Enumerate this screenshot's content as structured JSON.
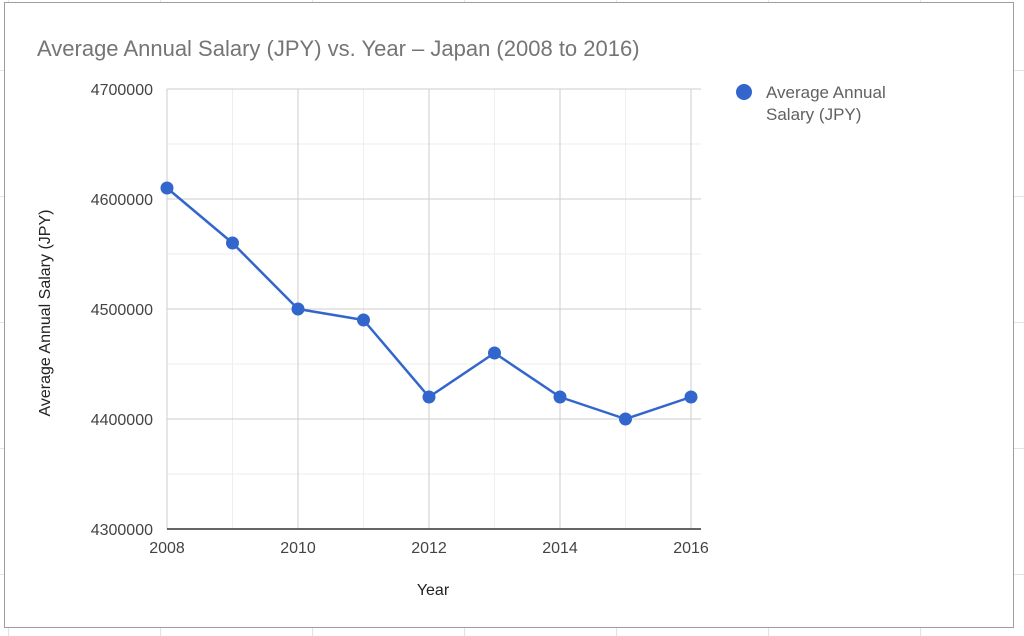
{
  "chart_data": {
    "type": "line",
    "title": "Average Annual Salary (JPY) vs. Year – Japan (2008 to 2016)",
    "xlabel": "Year",
    "ylabel": "Average Annual Salary (JPY)",
    "xlim": [
      2008,
      2016
    ],
    "ylim": [
      4300000,
      4700000
    ],
    "x_ticks": [
      "2008",
      "2010",
      "2012",
      "2014",
      "2016"
    ],
    "y_ticks": [
      "4300000",
      "4400000",
      "4500000",
      "4600000",
      "4700000"
    ],
    "grid": true,
    "legend_position": "right",
    "series": [
      {
        "name": "Average Annual Salary (JPY)",
        "color": "#3366cc",
        "x": [
          2008,
          2009,
          2010,
          2011,
          2012,
          2013,
          2014,
          2015,
          2016
        ],
        "values": [
          4610000,
          4560000,
          4500000,
          4490000,
          4420000,
          4460000,
          4420000,
          4400000,
          4420000
        ]
      }
    ]
  },
  "legend": {
    "lines": [
      "Average Annual",
      "Salary (JPY)"
    ]
  }
}
